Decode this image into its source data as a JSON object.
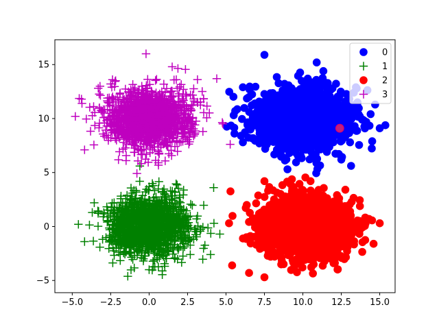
{
  "chart_data": {
    "type": "scatter",
    "title": "",
    "xlabel": "",
    "ylabel": "",
    "xlim": [
      -6.13,
      16.0
    ],
    "ylim": [
      -6.13,
      17.3
    ],
    "xticks": [
      -5.0,
      -2.5,
      0.0,
      2.5,
      5.0,
      7.5,
      10.0,
      12.5,
      15.0
    ],
    "xtick_labels": [
      "−5.0",
      "−2.5",
      "0.0",
      "2.5",
      "5.0",
      "7.5",
      "10.0",
      "12.5",
      "15.0"
    ],
    "yticks": [
      -5,
      0,
      5,
      10,
      15
    ],
    "ytick_labels": [
      "−5",
      "0",
      "5",
      "10",
      "15"
    ],
    "grid": false,
    "legend_position": "top-right",
    "series": [
      {
        "name": "0",
        "marker": "circle",
        "color": "#0000ff",
        "center": [
          10.0,
          10.0
        ],
        "spread": [
          1.55,
          1.45
        ],
        "count": 1500,
        "outliers": [
          [
            7.5,
            15.9
          ],
          [
            10.9,
            15.2
          ],
          [
            6.1,
            12.9
          ],
          [
            14.7,
            11.3
          ],
          [
            15.0,
            9.1
          ],
          [
            9.0,
            5.3
          ],
          [
            5.6,
            10.7
          ],
          [
            6.1,
            7.8
          ],
          [
            13.5,
            12.8
          ],
          [
            12.5,
            6.2
          ]
        ]
      },
      {
        "name": "1",
        "marker": "plus",
        "color": "#008000",
        "center": [
          0.0,
          0.0
        ],
        "spread": [
          1.3,
          1.35
        ],
        "count": 1500,
        "outliers": [
          [
            -4.6,
            0.2
          ],
          [
            4.2,
            3.6
          ],
          [
            4.6,
            -0.7
          ],
          [
            -4.2,
            -1.4
          ],
          [
            -0.6,
            5.6
          ],
          [
            4.0,
            -2.6
          ],
          [
            -3.7,
            1.3
          ],
          [
            0.0,
            -4.0
          ]
        ]
      },
      {
        "name": "2",
        "marker": "circle",
        "color": "#ff0000",
        "center": [
          10.0,
          0.0
        ],
        "spread": [
          1.45,
          1.4
        ],
        "count": 1500,
        "outliers": [
          [
            5.4,
            -3.6
          ],
          [
            6.5,
            -4.3
          ],
          [
            7.5,
            -4.7
          ],
          [
            15.0,
            0.3
          ],
          [
            14.6,
            -1.6
          ],
          [
            5.2,
            0.3
          ],
          [
            7.5,
            4.2
          ],
          [
            10.5,
            4.2
          ],
          [
            14.3,
            0.7
          ],
          [
            12.0,
            -3.4
          ]
        ]
      },
      {
        "name": "3",
        "marker": "plus",
        "color": "#bf00bf",
        "center": [
          0.0,
          10.0
        ],
        "spread": [
          1.35,
          1.35
        ],
        "count": 1500,
        "outliers": [
          [
            -4.8,
            10.2
          ],
          [
            -0.2,
            16.0
          ],
          [
            1.5,
            14.8
          ],
          [
            4.4,
            13.7
          ],
          [
            -4.2,
            7.1
          ],
          [
            -1.5,
            6.1
          ],
          [
            4.8,
            9.5
          ],
          [
            3.5,
            8.8
          ],
          [
            -4.4,
            11.8
          ],
          [
            0.6,
            5.9
          ]
        ]
      }
    ],
    "highlight_point": {
      "x": 12.4,
      "y": 9.1,
      "color": "#bf2080",
      "edge": "#e0006a"
    }
  }
}
